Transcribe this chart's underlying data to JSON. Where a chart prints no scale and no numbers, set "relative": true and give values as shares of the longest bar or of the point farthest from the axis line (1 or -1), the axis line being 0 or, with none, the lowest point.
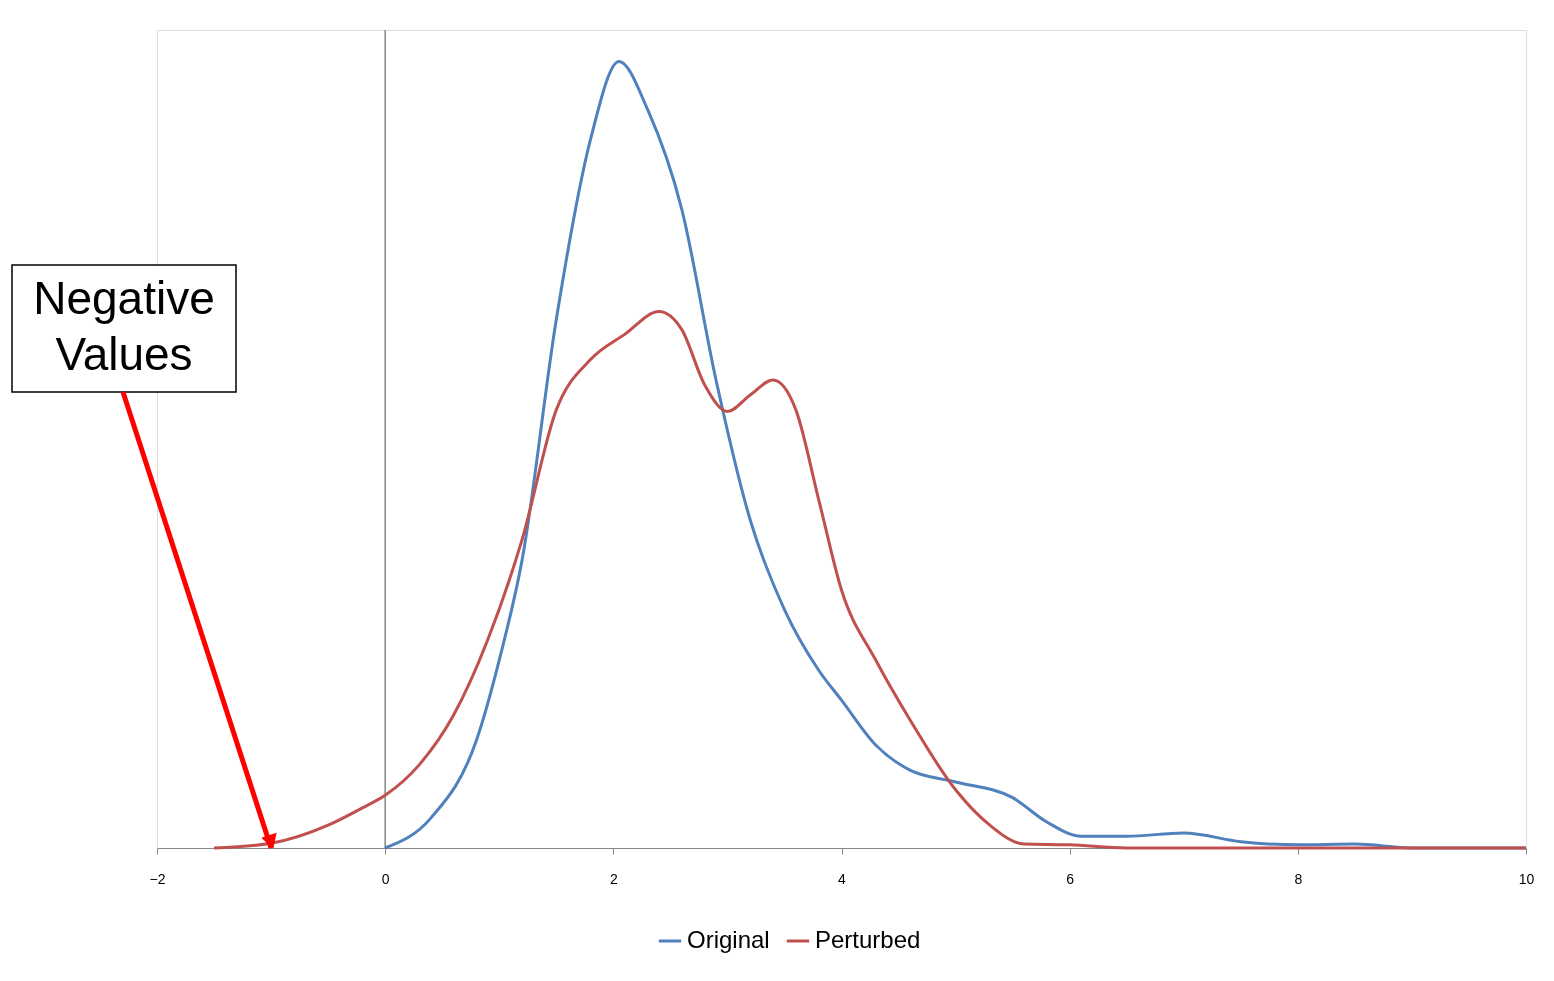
{
  "chart_data": {
    "type": "line",
    "relative": true,
    "xlim": [
      -2,
      10
    ],
    "xticks": [
      -2,
      0,
      2,
      4,
      6,
      8,
      10
    ],
    "grid": false,
    "legend": "bottom",
    "marker": "none",
    "line_style": "solid",
    "ref_lines": [
      {
        "axis": "x",
        "value": 0,
        "color": "#868686"
      }
    ],
    "annotations": [
      {
        "text": "Negative Values",
        "x": -1,
        "y": 0
      }
    ],
    "series": [
      {
        "name": "Original",
        "color": "#4f81bd",
        "x": [
          0,
          0.4,
          0.8,
          1.0,
          1.2,
          1.5,
          1.8,
          2.05,
          2.3,
          2.6,
          2.9,
          3.2,
          3.5,
          3.8,
          4.0,
          4.3,
          4.6,
          5.0,
          5.5,
          5.8,
          6.1,
          6.5,
          7.0,
          7.5,
          8.0,
          8.5,
          9.0,
          10
        ],
        "values": [
          0,
          0.038,
          0.137,
          0.239,
          0.366,
          0.672,
          0.901,
          1,
          0.939,
          0.812,
          0.595,
          0.417,
          0.303,
          0.226,
          0.188,
          0.131,
          0.099,
          0.084,
          0.064,
          0.033,
          0.015,
          0.015,
          0.019,
          0.008,
          0.004,
          0.005,
          0,
          0
        ]
      },
      {
        "name": "Perturbed",
        "color": "#c0504d",
        "x": [
          -1.5,
          -1,
          -0.5,
          -0.2,
          0,
          0.3,
          0.6,
          0.9,
          1.2,
          1.5,
          1.8,
          2.1,
          2.4,
          2.6,
          2.8,
          3.0,
          3.2,
          3.4,
          3.6,
          3.8,
          4.0,
          4.3,
          4.6,
          5.0,
          5.3,
          5.6,
          6.0,
          6.5,
          10
        ],
        "values": [
          0,
          0.006,
          0.029,
          0.051,
          0.067,
          0.106,
          0.169,
          0.265,
          0.392,
          0.557,
          0.621,
          0.653,
          0.682,
          0.659,
          0.589,
          0.555,
          0.576,
          0.595,
          0.557,
          0.443,
          0.328,
          0.239,
          0.163,
          0.074,
          0.029,
          0.005,
          0.004,
          0,
          0
        ]
      }
    ]
  }
}
